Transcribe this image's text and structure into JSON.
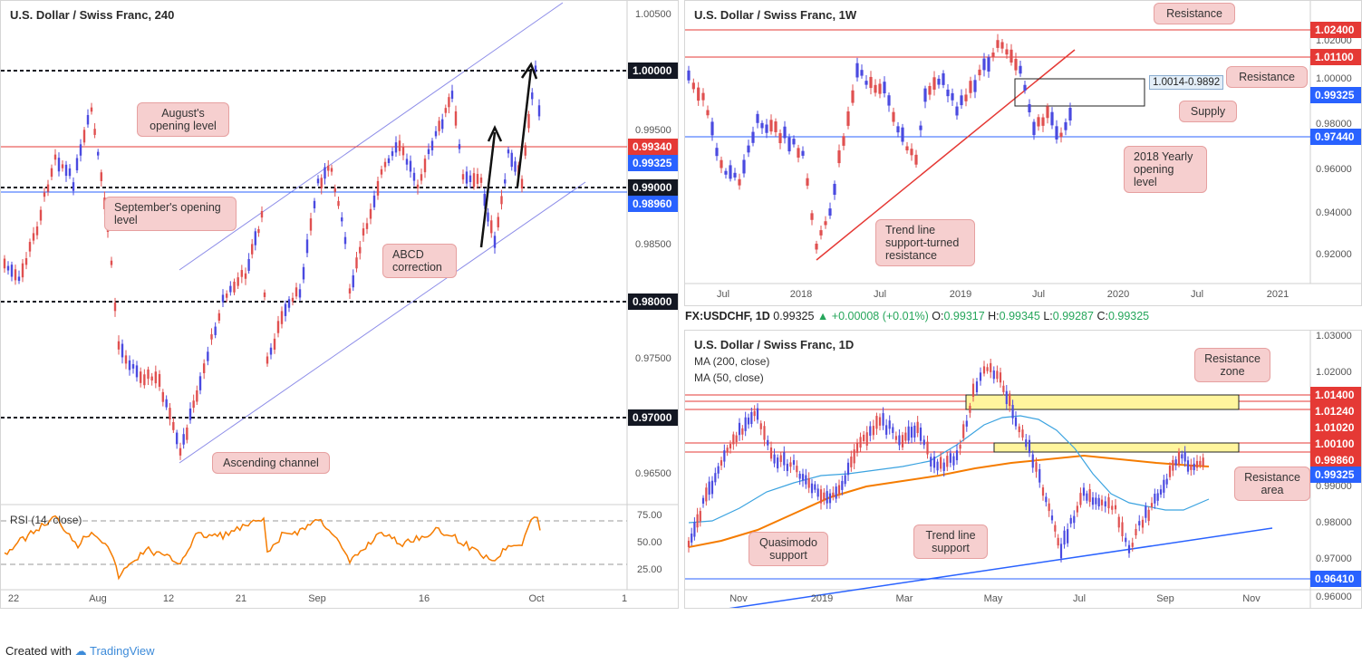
{
  "h4": {
    "title": "U.S. Dollar / Swiss Franc, 240",
    "price_ticks": [
      "1.00500",
      "0.99500",
      "0.98500",
      "0.97500",
      "0.96500"
    ],
    "levels": [
      {
        "value": "1.00000",
        "style": "dark"
      },
      {
        "value": "0.99340",
        "style": "red"
      },
      {
        "value": "0.99325",
        "style": "blue"
      },
      {
        "value": "0.99000",
        "style": "dark"
      },
      {
        "value": "0.98960",
        "style": "blue"
      },
      {
        "value": "0.98000",
        "style": "dark"
      },
      {
        "value": "0.97000",
        "style": "dark"
      }
    ],
    "x_labels": [
      "22",
      "Aug",
      "12",
      "21",
      "Sep",
      "16",
      "Oct",
      "1"
    ],
    "notes": {
      "august": "August's opening level",
      "september": "September's opening level",
      "abcd": "ABCD correction",
      "channel": "Ascending channel"
    },
    "rsi": {
      "label": "RSI (14, close)",
      "ticks": [
        "75.00",
        "50.00",
        "25.00"
      ]
    }
  },
  "weekly": {
    "title": "U.S. Dollar / Swiss Franc, 1W",
    "price_ticks": [
      "1.02000",
      "1.00000",
      "0.98000",
      "0.96000",
      "0.94000",
      "0.92000"
    ],
    "levels": [
      {
        "value": "1.02400",
        "style": "red"
      },
      {
        "value": "1.01100",
        "style": "red"
      },
      {
        "value": "0.99325",
        "style": "blue"
      },
      {
        "value": "0.97440",
        "style": "blue"
      }
    ],
    "x_labels": [
      "Jul",
      "2018",
      "Jul",
      "2019",
      "Jul",
      "2020",
      "Jul",
      "2021"
    ],
    "supply_box": "1.0014-0.9892",
    "notes": {
      "resistance_top": "Resistance",
      "resistance": "Resistance",
      "supply": "Supply",
      "yearly": "2018 Yearly opening level",
      "trendline": "Trend line support-turned resistance"
    }
  },
  "info_bar": {
    "symbol": "FX:USDCHF, 1D",
    "price": "0.99325",
    "change": "▲ +0.00008 (+0.01%)",
    "o_label": "O:",
    "o": "0.99317",
    "h_label": "H:",
    "h": "0.99345",
    "l_label": "L:",
    "l": "0.99287",
    "c_label": "C:",
    "c": "0.99325"
  },
  "daily": {
    "title": "U.S. Dollar / Swiss Franc, 1D",
    "ma200": "MA (200, close)",
    "ma50": "MA (50, close)",
    "price_ticks": [
      "1.03000",
      "1.02000",
      "0.99000",
      "0.98000",
      "0.97000",
      "0.96000"
    ],
    "levels": [
      {
        "value": "1.01400",
        "style": "red"
      },
      {
        "value": "1.01240",
        "style": "red"
      },
      {
        "value": "1.01020",
        "style": "red"
      },
      {
        "value": "1.00100",
        "style": "red"
      },
      {
        "value": "0.99860",
        "style": "red"
      },
      {
        "value": "0.99325",
        "style": "blue"
      },
      {
        "value": "0.96410",
        "style": "blue"
      }
    ],
    "x_labels": [
      "Nov",
      "2019",
      "Mar",
      "May",
      "Jul",
      "Sep",
      "Nov"
    ],
    "notes": {
      "resistance_zone": "Resistance zone",
      "resistance_area": "Resistance area",
      "quasimodo": "Quasimodo support",
      "trendline": "Trend line support"
    }
  },
  "colors": {
    "red": "#e53935",
    "blue": "#2962ff",
    "dark": "#131722",
    "candle_up": "#4a4ae0",
    "candle_down": "#e05050",
    "rsi": "#f57c00",
    "ma200": "#f57c00",
    "ma50": "#3ba3e0"
  },
  "footer": {
    "created_with": "Created with",
    "brand": "TradingView"
  }
}
